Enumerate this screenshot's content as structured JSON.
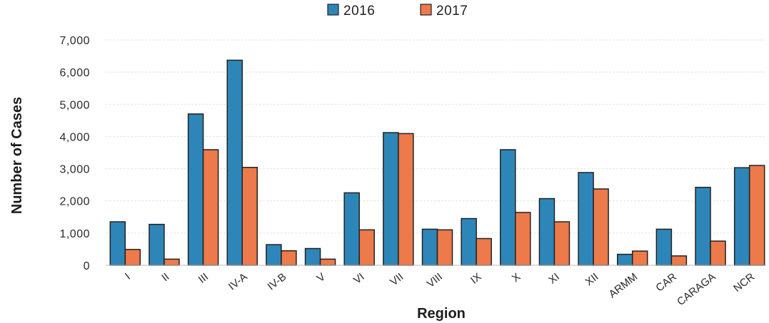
{
  "chart_data": {
    "type": "bar",
    "title": "",
    "xlabel": "Region",
    "ylabel": "Number of Cases",
    "ylim": [
      0,
      7000
    ],
    "yticks": [
      0,
      1000,
      2000,
      3000,
      4000,
      5000,
      6000,
      7000
    ],
    "ytick_labels": [
      "0",
      "1,000",
      "2,000",
      "3,000",
      "4,000",
      "5,000",
      "6,000",
      "7,000"
    ],
    "categories": [
      "I",
      "II",
      "III",
      "IV-A",
      "IV-B",
      "V",
      "VI",
      "VII",
      "VIII",
      "IX",
      "X",
      "XI",
      "XII",
      "ARMM",
      "CAR",
      "CARAGA",
      "NCR"
    ],
    "series": [
      {
        "name": "2016",
        "color": "#2e86b8",
        "values": [
          1350,
          1270,
          4700,
          6370,
          640,
          520,
          2250,
          4120,
          1120,
          1450,
          3590,
          2070,
          2880,
          340,
          1120,
          2420,
          3030
        ]
      },
      {
        "name": "2017",
        "color": "#ec7a4a",
        "values": [
          490,
          190,
          3590,
          3040,
          450,
          190,
          1100,
          4090,
          1100,
          830,
          1640,
          1350,
          2370,
          440,
          290,
          750,
          3100
        ]
      }
    ],
    "legend_position": "top-center",
    "grid": true
  }
}
